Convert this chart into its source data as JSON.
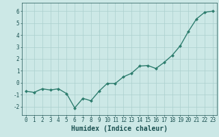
{
  "x": [
    0,
    1,
    2,
    3,
    4,
    5,
    6,
    7,
    8,
    9,
    10,
    11,
    12,
    13,
    14,
    15,
    16,
    17,
    18,
    19,
    20,
    21,
    22,
    23
  ],
  "y": [
    -0.7,
    -0.8,
    -0.5,
    -0.6,
    -0.5,
    -0.9,
    -2.1,
    -1.3,
    -1.5,
    -0.7,
    -0.05,
    -0.05,
    0.5,
    0.8,
    1.4,
    1.45,
    1.2,
    1.7,
    2.3,
    3.1,
    4.3,
    5.35,
    5.9,
    6.0
  ],
  "line_color": "#2e7d6e",
  "marker": "D",
  "marker_size": 2.0,
  "xlabel": "Humidex (Indice chaleur)",
  "xlim": [
    -0.5,
    23.5
  ],
  "ylim": [
    -2.7,
    6.7
  ],
  "yticks": [
    -2,
    -1,
    0,
    1,
    2,
    3,
    4,
    5,
    6
  ],
  "xticks": [
    0,
    1,
    2,
    3,
    4,
    5,
    6,
    7,
    8,
    9,
    10,
    11,
    12,
    13,
    14,
    15,
    16,
    17,
    18,
    19,
    20,
    21,
    22,
    23
  ],
  "bg_color": "#cce8e6",
  "grid_color": "#aacfcd",
  "line_width": 1.0,
  "font_color": "#1a5050",
  "xlabel_fontsize": 7,
  "tick_fontsize": 5.5
}
